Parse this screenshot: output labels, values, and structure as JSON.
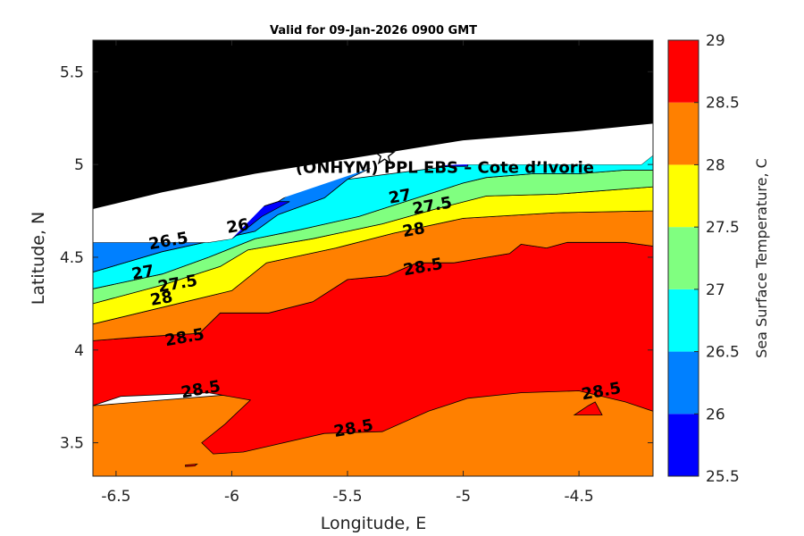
{
  "chart_data": {
    "type": "contourf",
    "title": "Valid for 09-Jan-2026 0900 GMT",
    "xlabel": "Longitude, E",
    "ylabel": "Latitude, N",
    "xlim": [
      -6.6,
      -4.18
    ],
    "ylim": [
      3.32,
      5.67
    ],
    "xticks": [
      -6.5,
      -6,
      -5.5,
      -5,
      -4.5
    ],
    "xtick_labels": [
      "-6.5",
      "-6",
      "-5.5",
      "-5",
      "-4.5"
    ],
    "yticks": [
      3.5,
      4,
      4.5,
      5,
      5.5
    ],
    "ytick_labels": [
      "3.5",
      "4",
      "4.5",
      "5",
      "5.5"
    ],
    "colorbar": {
      "label": "Sea Surface Temperature, C",
      "levels": [
        25.5,
        26,
        26.5,
        27,
        27.5,
        28,
        28.5,
        29
      ],
      "tick_labels": [
        "25.5",
        "26",
        "26.5",
        "27",
        "27.5",
        "28",
        "28.5",
        "29"
      ],
      "band_colors": [
        "#0000ff",
        "#0080ff",
        "#00ffff",
        "#80ff80",
        "#ffff00",
        "#ff8000",
        "#ff0000"
      ]
    },
    "colors": {
      "land": "#000000",
      "no_data": "#ffffff",
      "outline": "#000000"
    },
    "site": {
      "label": "(ONHYM) PPL EBS  – Cote d’Ivorie",
      "marker": "star-icon",
      "lon": -5.34,
      "lat": 5.05
    },
    "contour_labels": [
      {
        "text": "26",
        "lon": -5.97,
        "lat": 4.64
      },
      {
        "text": "26.5",
        "lon": -6.27,
        "lat": 4.56
      },
      {
        "text": "27",
        "lon": -5.27,
        "lat": 4.8
      },
      {
        "text": "27.5",
        "lon": -5.13,
        "lat": 4.75
      },
      {
        "text": "28",
        "lon": -5.21,
        "lat": 4.62
      },
      {
        "text": "27",
        "lon": -6.38,
        "lat": 4.39
      },
      {
        "text": "27.5",
        "lon": -6.23,
        "lat": 4.33
      },
      {
        "text": "28",
        "lon": -6.3,
        "lat": 4.25
      },
      {
        "text": "28.5",
        "lon": -5.17,
        "lat": 4.42
      },
      {
        "text": "28.5",
        "lon": -6.2,
        "lat": 4.04
      },
      {
        "text": "28.5",
        "lon": -6.13,
        "lat": 3.76
      },
      {
        "text": "28.5",
        "lon": -5.47,
        "lat": 3.55
      },
      {
        "text": "28.5",
        "lon": -4.4,
        "lat": 3.75
      }
    ],
    "regions": [
      {
        "name": "band-28-28.5-south",
        "color": "#ff8000",
        "points": [
          [
            -6.6,
            3.32
          ],
          [
            -4.18,
            3.32
          ],
          [
            -4.18,
            3.7
          ],
          [
            -4.3,
            3.86
          ],
          [
            -4.5,
            3.92
          ],
          [
            -5,
            3.92
          ],
          [
            -5.3,
            3.85
          ],
          [
            -5.5,
            3.76
          ],
          [
            -6,
            3.76
          ],
          [
            -6.6,
            3.7
          ]
        ]
      },
      {
        "name": "band-28.5-29-main",
        "color": "#ff0000",
        "points": [
          [
            -6.6,
            3.7
          ],
          [
            -6.48,
            3.75
          ],
          [
            -6.1,
            3.77
          ],
          [
            -5.92,
            3.73
          ],
          [
            -6.03,
            3.6
          ],
          [
            -6.13,
            3.5
          ],
          [
            -6.08,
            3.44
          ],
          [
            -5.95,
            3.45
          ],
          [
            -5.6,
            3.55
          ],
          [
            -5.35,
            3.56
          ],
          [
            -5.15,
            3.67
          ],
          [
            -4.98,
            3.74
          ],
          [
            -4.75,
            3.77
          ],
          [
            -4.5,
            3.78
          ],
          [
            -4.3,
            3.72
          ],
          [
            -4.18,
            3.67
          ],
          [
            -4.18,
            4.56
          ],
          [
            -4.3,
            4.58
          ],
          [
            -4.55,
            4.58
          ],
          [
            -4.64,
            4.55
          ],
          [
            -4.75,
            4.57
          ],
          [
            -4.8,
            4.52
          ],
          [
            -5.04,
            4.47
          ],
          [
            -5.2,
            4.47
          ],
          [
            -5.33,
            4.4
          ],
          [
            -5.5,
            4.38
          ],
          [
            -5.65,
            4.26
          ],
          [
            -5.84,
            4.2
          ],
          [
            -6.05,
            4.2
          ],
          [
            -6.14,
            4.09
          ],
          [
            -6.4,
            4.07
          ],
          [
            -6.6,
            4.05
          ]
        ]
      },
      {
        "name": "band-28-28.5-north",
        "color": "#ff8000",
        "points": [
          [
            -6.6,
            4.05
          ],
          [
            -6.4,
            4.07
          ],
          [
            -6.14,
            4.09
          ],
          [
            -6.05,
            4.2
          ],
          [
            -5.84,
            4.2
          ],
          [
            -5.65,
            4.26
          ],
          [
            -5.5,
            4.38
          ],
          [
            -5.33,
            4.4
          ],
          [
            -5.2,
            4.47
          ],
          [
            -5.04,
            4.47
          ],
          [
            -4.8,
            4.52
          ],
          [
            -4.75,
            4.57
          ],
          [
            -4.64,
            4.55
          ],
          [
            -4.55,
            4.58
          ],
          [
            -4.3,
            4.58
          ],
          [
            -4.18,
            4.56
          ],
          [
            -4.18,
            4.75
          ],
          [
            -4.6,
            4.74
          ],
          [
            -5.0,
            4.71
          ],
          [
            -5.3,
            4.63
          ],
          [
            -5.55,
            4.55
          ],
          [
            -5.85,
            4.47
          ],
          [
            -6.0,
            4.32
          ],
          [
            -6.2,
            4.26
          ],
          [
            -6.6,
            4.14
          ]
        ]
      },
      {
        "name": "band-27.5-28",
        "color": "#ffff00",
        "points": [
          [
            -6.6,
            4.14
          ],
          [
            -6.2,
            4.26
          ],
          [
            -6.0,
            4.32
          ],
          [
            -5.85,
            4.47
          ],
          [
            -5.55,
            4.55
          ],
          [
            -5.3,
            4.63
          ],
          [
            -5.0,
            4.71
          ],
          [
            -4.6,
            4.74
          ],
          [
            -4.18,
            4.75
          ],
          [
            -4.18,
            4.88
          ],
          [
            -4.6,
            4.84
          ],
          [
            -4.9,
            4.83
          ],
          [
            -5.12,
            4.76
          ],
          [
            -5.35,
            4.68
          ],
          [
            -5.65,
            4.6
          ],
          [
            -5.93,
            4.54
          ],
          [
            -6.05,
            4.45
          ],
          [
            -6.3,
            4.35
          ],
          [
            -6.6,
            4.25
          ]
        ]
      },
      {
        "name": "band-27-27.5",
        "color": "#80ff80",
        "points": [
          [
            -6.6,
            4.25
          ],
          [
            -6.3,
            4.35
          ],
          [
            -6.05,
            4.45
          ],
          [
            -5.93,
            4.54
          ],
          [
            -5.65,
            4.6
          ],
          [
            -5.35,
            4.68
          ],
          [
            -5.12,
            4.76
          ],
          [
            -4.9,
            4.83
          ],
          [
            -4.6,
            4.84
          ],
          [
            -4.18,
            4.88
          ],
          [
            -4.18,
            4.97
          ],
          [
            -4.3,
            4.97
          ],
          [
            -4.5,
            4.95
          ],
          [
            -4.7,
            4.95
          ],
          [
            -4.9,
            4.93
          ],
          [
            -5.0,
            4.9
          ],
          [
            -5.1,
            4.86
          ],
          [
            -5.3,
            4.78
          ],
          [
            -5.45,
            4.72
          ],
          [
            -5.7,
            4.65
          ],
          [
            -5.9,
            4.6
          ],
          [
            -6.1,
            4.5
          ],
          [
            -6.3,
            4.41
          ],
          [
            -6.6,
            4.33
          ]
        ]
      },
      {
        "name": "band-26.5-27",
        "color": "#00ffff",
        "points": [
          [
            -6.6,
            4.33
          ],
          [
            -6.3,
            4.41
          ],
          [
            -6.1,
            4.5
          ],
          [
            -5.9,
            4.6
          ],
          [
            -5.7,
            4.65
          ],
          [
            -5.45,
            4.72
          ],
          [
            -5.3,
            4.78
          ],
          [
            -5.1,
            4.86
          ],
          [
            -5.0,
            4.9
          ],
          [
            -4.9,
            4.93
          ],
          [
            -4.7,
            4.95
          ],
          [
            -4.5,
            4.95
          ],
          [
            -4.3,
            4.97
          ],
          [
            -4.18,
            4.97
          ],
          [
            -4.18,
            5.05
          ],
          [
            -4.23,
            5.0
          ],
          [
            -4.5,
            5.0
          ],
          [
            -5.0,
            5.0
          ],
          [
            -5.5,
            4.92
          ],
          [
            -5.6,
            4.82
          ],
          [
            -5.8,
            4.73
          ],
          [
            -5.9,
            4.64
          ],
          [
            -6.3,
            4.53
          ],
          [
            -6.6,
            4.42
          ]
        ]
      },
      {
        "name": "band-26-26.5",
        "color": "#0080ff",
        "points": [
          [
            -6.6,
            4.42
          ],
          [
            -6.3,
            4.53
          ],
          [
            -5.9,
            4.64
          ],
          [
            -5.8,
            4.73
          ],
          [
            -5.6,
            4.82
          ],
          [
            -5.5,
            4.92
          ],
          [
            -5.4,
            4.98
          ],
          [
            -5.6,
            4.92
          ],
          [
            -5.7,
            4.88
          ],
          [
            -5.8,
            4.8
          ],
          [
            -5.95,
            4.74
          ],
          [
            -6.05,
            4.67
          ],
          [
            -6.1,
            4.58
          ],
          [
            -6.6,
            4.58
          ]
        ]
      },
      {
        "name": "band-25.5-26",
        "color": "#0000ff",
        "points": [
          [
            -6.1,
            4.58
          ],
          [
            -6.05,
            4.67
          ],
          [
            -5.95,
            4.74
          ],
          [
            -5.8,
            4.8
          ],
          [
            -5.75,
            4.8
          ],
          [
            -5.87,
            4.72
          ],
          [
            -5.93,
            4.66
          ],
          [
            -6.0,
            4.6
          ]
        ]
      },
      {
        "name": "band-25.5-26-east",
        "color": "#0000ff",
        "points": [
          [
            -5.08,
            4.99
          ],
          [
            -5.08,
            5.05
          ],
          [
            -4.98,
            5.05
          ],
          [
            -4.98,
            4.99
          ]
        ]
      },
      {
        "name": "band-28.5-29-west-spot",
        "color": "#ff0000",
        "points": [
          [
            -6.2,
            3.38
          ],
          [
            -6.15,
            3.385
          ],
          [
            -6.16,
            3.375
          ],
          [
            -6.2,
            3.372
          ]
        ]
      },
      {
        "name": "band-28.5-29-east-spot",
        "color": "#ff0000",
        "points": [
          [
            -4.52,
            3.65
          ],
          [
            -4.46,
            3.7
          ],
          [
            -4.43,
            3.72
          ],
          [
            -4.4,
            3.65
          ]
        ]
      },
      {
        "name": "no-data-strip",
        "color": "#ffffff",
        "points": [
          [
            -6.6,
            4.58
          ],
          [
            -6.1,
            4.58
          ],
          [
            -6.0,
            4.6
          ],
          [
            -5.85,
            4.79
          ],
          [
            -5.4,
            4.98
          ],
          [
            -5.0,
            5.0
          ],
          [
            -4.5,
            5.0
          ],
          [
            -4.23,
            5.0
          ],
          [
            -4.18,
            5.05
          ],
          [
            -4.18,
            5.07
          ],
          [
            -4.2,
            5.07
          ],
          [
            -4.6,
            5.08
          ],
          [
            -5.2,
            5.08
          ],
          [
            -5.4,
            5.06
          ],
          [
            -5.75,
            5.0
          ],
          [
            -6.1,
            4.9
          ],
          [
            -6.6,
            4.75
          ]
        ]
      },
      {
        "name": "land",
        "color": "#000000",
        "points": [
          [
            -6.6,
            5.67
          ],
          [
            -4.18,
            5.67
          ],
          [
            -4.18,
            5.22
          ],
          [
            -4.5,
            5.18
          ],
          [
            -5.0,
            5.13
          ],
          [
            -5.3,
            5.07
          ],
          [
            -5.55,
            5.02
          ],
          [
            -5.9,
            4.95
          ],
          [
            -6.3,
            4.85
          ],
          [
            -6.6,
            4.76
          ]
        ]
      }
    ]
  }
}
